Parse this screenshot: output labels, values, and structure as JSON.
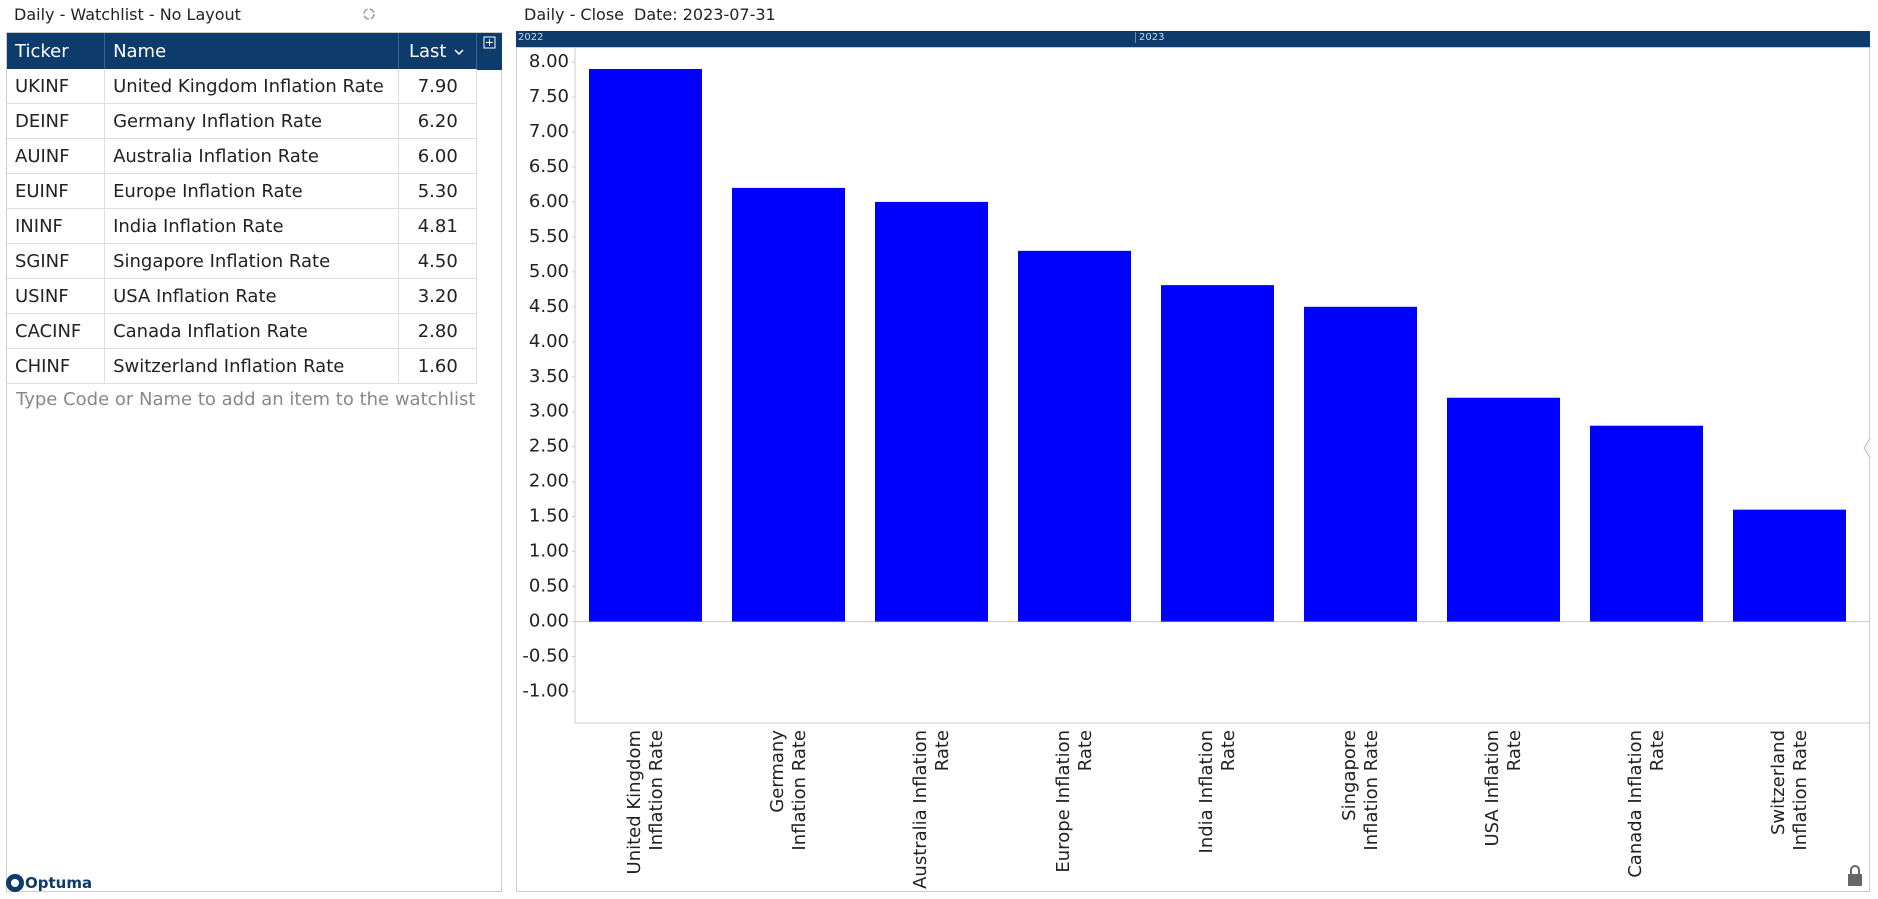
{
  "watchlist": {
    "title": "Daily - Watchlist - No Layout",
    "columns": [
      "Ticker",
      "Name",
      "Last"
    ],
    "rows": [
      [
        "UKINF",
        "United Kingdom Inflation Rate",
        "7.90"
      ],
      [
        "DEINF",
        "Germany Inflation Rate",
        "6.20"
      ],
      [
        "AUINF",
        "Australia Inflation Rate",
        "6.00"
      ],
      [
        "EUINF",
        "Europe Inflation Rate",
        "5.30"
      ],
      [
        "ININF",
        "India Inflation Rate",
        "4.81"
      ],
      [
        "SGINF",
        "Singapore Inflation Rate",
        "4.50"
      ],
      [
        "USINF",
        "USA Inflation Rate",
        "3.20"
      ],
      [
        "CACINF",
        "Canada Inflation Rate",
        "2.80"
      ],
      [
        "CHINF",
        "Switzerland Inflation Rate",
        "1.60"
      ]
    ],
    "placeholder": "Type Code or Name to add an item to the watchlist"
  },
  "chart_header": {
    "title": "Daily - Close",
    "date": "Date: 2023-07-31",
    "timeline": [
      "2022",
      "2023"
    ]
  },
  "logo": "Optuma",
  "chart_data": {
    "type": "bar",
    "categories": [
      "United Kingdom Inflation Rate",
      "Germany Inflation Rate",
      "Australia Inflation Rate",
      "Europe Inflation Rate",
      "India Inflation Rate",
      "Singapore Inflation Rate",
      "USA Inflation Rate",
      "Canada Inflation Rate",
      "Switzerland Inflation Rate"
    ],
    "values": [
      7.9,
      6.2,
      6.0,
      5.3,
      4.81,
      4.5,
      3.2,
      2.8,
      1.6
    ],
    "color": "#0000ff",
    "ylim": [
      -1.45,
      8.2
    ],
    "yticks": [
      {
        "value": -1,
        "label": "-1.00"
      },
      {
        "value": -0.5,
        "label": "-0.50"
      },
      {
        "value": 0,
        "label": "0.00"
      },
      {
        "value": 0.5,
        "label": "0.50"
      },
      {
        "value": 1,
        "label": "1.00"
      },
      {
        "value": 1.5,
        "label": "1.50"
      },
      {
        "value": 2,
        "label": "2.00"
      },
      {
        "value": 2.5,
        "label": "2.50"
      },
      {
        "value": 3,
        "label": "3.00"
      },
      {
        "value": 3.5,
        "label": "3.50"
      },
      {
        "value": 4,
        "label": "4.00"
      },
      {
        "value": 4.5,
        "label": "4.50"
      },
      {
        "value": 5,
        "label": "5.00"
      },
      {
        "value": 5.5,
        "label": "5.50"
      },
      {
        "value": 6,
        "label": "6.00"
      },
      {
        "value": 6.5,
        "label": "6.50"
      },
      {
        "value": 7,
        "label": "7.00"
      },
      {
        "value": 7.5,
        "label": "7.50"
      },
      {
        "value": 8,
        "label": "8.00"
      }
    ]
  }
}
